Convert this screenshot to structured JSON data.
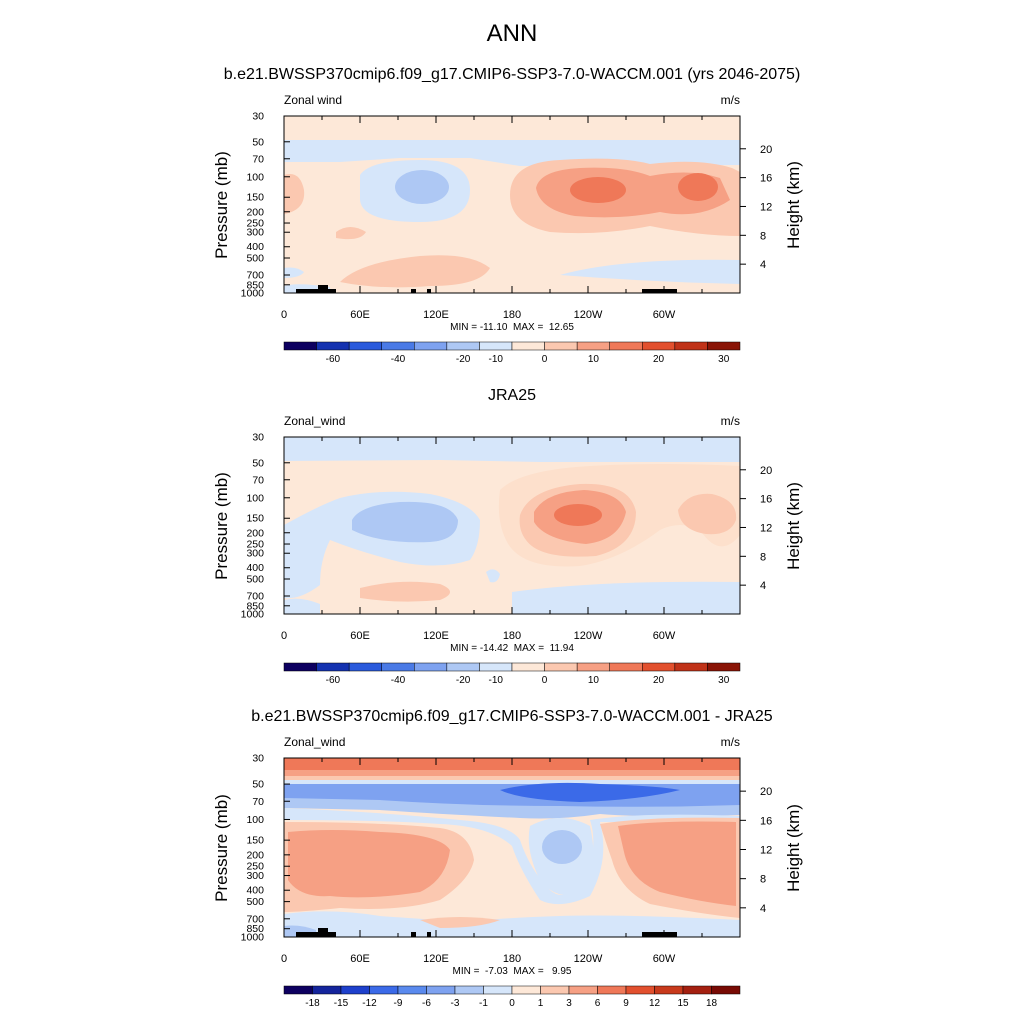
{
  "figure": {
    "title": "ANN"
  },
  "chart_data": [
    {
      "type": "heatmap",
      "panel_title": "b.e21.BWSSP370cmip6.f09_g17.CMIP6-SSP3-7.0-WACCM.001 (yrs 2046-2075)",
      "variable": "Zonal wind",
      "units": "m/s",
      "ylabel": "Pressure (mb)",
      "ylabel_right": "Height (km)",
      "x_ticks": [
        "0",
        "60E",
        "120E",
        "180",
        "120W",
        "60W"
      ],
      "y_ticks": [
        "30",
        "50",
        "70",
        "100",
        "150",
        "200",
        "250",
        "300",
        "400",
        "500",
        "700",
        "850",
        "1000"
      ],
      "height_ticks": [
        "20",
        "16",
        "12",
        "8",
        "4"
      ],
      "stats": "MIN = -11.10  MAX =  12.65",
      "min": -11.1,
      "max": 12.65,
      "colorbar_labels": [
        "-60",
        "-40",
        "-20",
        "-10",
        "0",
        "10",
        "20",
        "30"
      ],
      "features": [
        {
          "lon": 100,
          "p": 140,
          "value": -8
        },
        {
          "lon": 230,
          "p": 135,
          "value": 11
        },
        {
          "lon": 315,
          "p": 130,
          "value": 11
        },
        {
          "lon": 270,
          "p": 140,
          "value": 6
        },
        {
          "lon": 130,
          "p": 600,
          "value": 4
        },
        {
          "lon": 60,
          "p": 60,
          "value": -3
        }
      ]
    },
    {
      "type": "heatmap",
      "panel_title": "JRA25",
      "variable": "Zonal_wind",
      "units": "m/s",
      "ylabel": "Pressure (mb)",
      "ylabel_right": "Height (km)",
      "x_ticks": [
        "0",
        "60E",
        "120E",
        "180",
        "120W",
        "60W"
      ],
      "y_ticks": [
        "30",
        "50",
        "70",
        "100",
        "150",
        "200",
        "250",
        "300",
        "400",
        "500",
        "700",
        "850",
        "1000"
      ],
      "height_ticks": [
        "20",
        "16",
        "12",
        "8",
        "4"
      ],
      "stats": "MIN = -14.42  MAX =  11.94",
      "min": -14.42,
      "max": 11.94,
      "colorbar_labels": [
        "-60",
        "-40",
        "-20",
        "-10",
        "0",
        "10",
        "20",
        "30"
      ],
      "features": [
        {
          "lon": 90,
          "p": 160,
          "value": -8
        },
        {
          "lon": 230,
          "p": 150,
          "value": 10
        },
        {
          "lon": 315,
          "p": 150,
          "value": 5
        },
        {
          "lon": 20,
          "p": 300,
          "value": -3
        },
        {
          "lon": 240,
          "p": 700,
          "value": -3
        }
      ]
    },
    {
      "type": "heatmap",
      "panel_title": "b.e21.BWSSP370cmip6.f09_g17.CMIP6-SSP3-7.0-WACCM.001 - JRA25",
      "variable": "Zonal_wind",
      "units": "m/s",
      "ylabel": "Pressure (mb)",
      "ylabel_right": "Height (km)",
      "x_ticks": [
        "0",
        "60E",
        "120E",
        "180",
        "120W",
        "60W"
      ],
      "y_ticks": [
        "30",
        "50",
        "70",
        "100",
        "150",
        "200",
        "250",
        "300",
        "400",
        "500",
        "700",
        "850",
        "1000"
      ],
      "height_ticks": [
        "20",
        "16",
        "12",
        "8",
        "4"
      ],
      "stats": "MIN =  -7.03  MAX =   9.95",
      "min": -7.03,
      "max": 9.95,
      "colorbar_labels": [
        "-18",
        "-15",
        "-12",
        "-9",
        "-6",
        "-3",
        "-1",
        "0",
        "1",
        "3",
        "6",
        "9",
        "12",
        "15",
        "18"
      ],
      "features": [
        {
          "lon": 90,
          "p": 250,
          "value": 4
        },
        {
          "lon": 305,
          "p": 200,
          "value": 5
        },
        {
          "lon": 200,
          "p": 200,
          "value": -4
        },
        {
          "lon": 200,
          "p": 55,
          "value": -6
        }
      ]
    }
  ],
  "colors": {
    "wind_palette": [
      "#0d0060",
      "#1432b0",
      "#2a5adc",
      "#4a7ae6",
      "#7ea2f0",
      "#aec8f4",
      "#d6e6fa",
      "#fde8d8",
      "#fbc8b0",
      "#f6a084",
      "#ef7858",
      "#e2502e",
      "#c03218",
      "#8a1406"
    ],
    "diff_palette": [
      "#0d0060",
      "#14249c",
      "#1e40cc",
      "#3b6ae8",
      "#5a8aee",
      "#7ea2f0",
      "#aec8f4",
      "#d6e6fa",
      "#fde8d8",
      "#fbc8b0",
      "#f6a084",
      "#ef7858",
      "#e2502e",
      "#c83a1c",
      "#a42010",
      "#780a04"
    ],
    "topo": "#000000"
  }
}
